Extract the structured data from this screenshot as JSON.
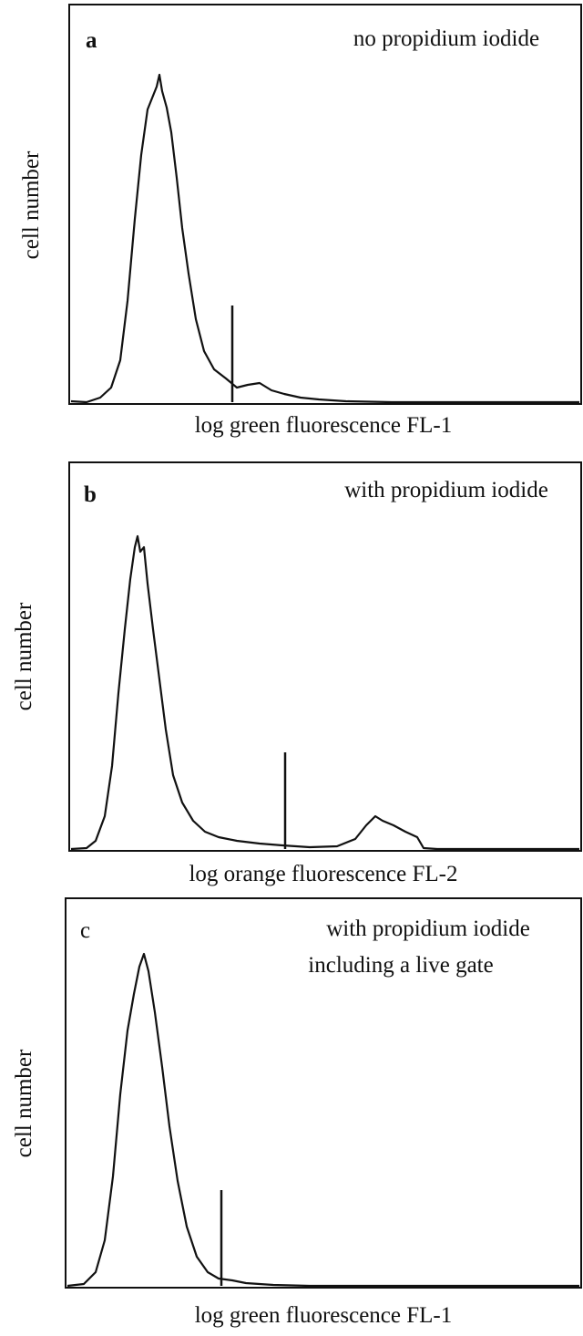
{
  "panels": [
    {
      "letter": "a",
      "title_lines": [
        "no propidium iodide"
      ],
      "y_label": "cell  number",
      "x_label": "log green fluorescence FL-1"
    },
    {
      "letter": "b",
      "title_lines": [
        "with propidium iodide"
      ],
      "y_label": "cell  number",
      "x_label": "log orange  fluorescence FL-2"
    },
    {
      "letter": "c",
      "title_lines": [
        "with propidium iodide",
        "including a live gate"
      ],
      "y_label": "cell  number",
      "x_label": "log green fluorescence FL-1"
    }
  ]
}
